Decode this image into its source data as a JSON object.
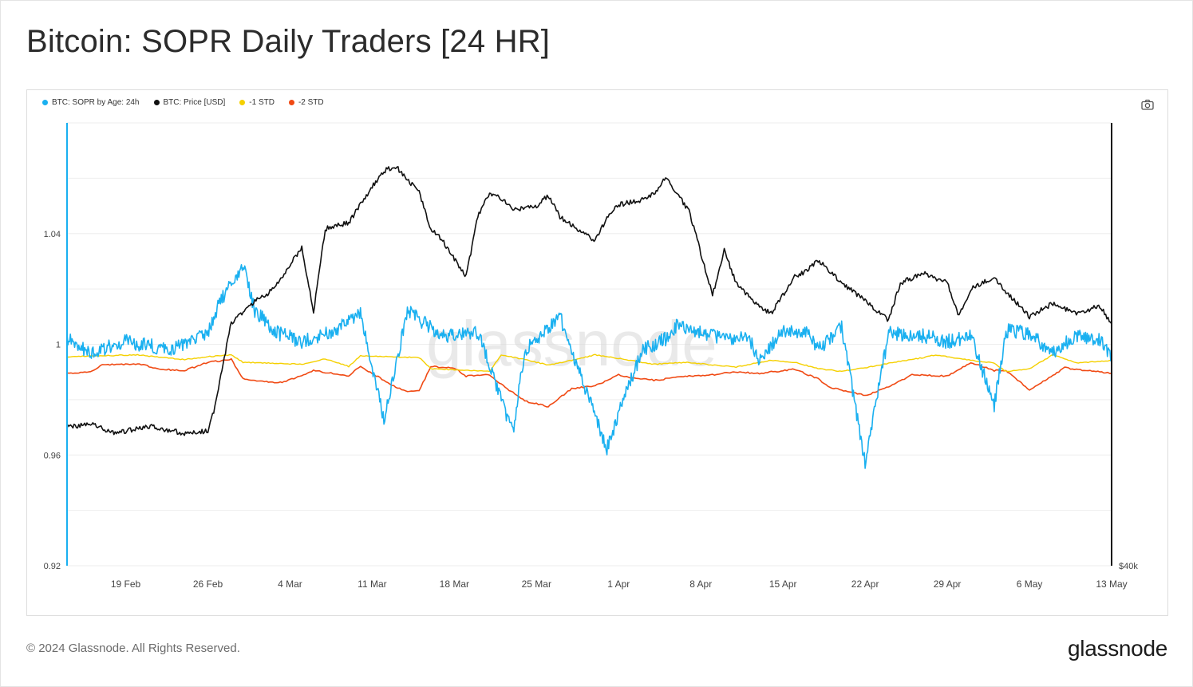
{
  "title": "Bitcoin: SOPR Daily Traders [24 HR]",
  "footer": {
    "copyright": "© 2024 Glassnode. All Rights Reserved.",
    "brand": "glassnode"
  },
  "watermark": "glassnode",
  "toolbar": {
    "screenshot_icon": "camera-icon"
  },
  "chart_data": {
    "type": "line",
    "legend": [
      {
        "name": "BTC: SOPR by Age: 24h",
        "color": "#1ab0f0"
      },
      {
        "name": "BTC: Price [USD]",
        "color": "#111111"
      },
      {
        "name": "-1 STD",
        "color": "#f5d000"
      },
      {
        "name": "-2 STD",
        "color": "#f04a14"
      }
    ],
    "x_ticks": [
      "19 Feb",
      "26 Feb",
      "4 Mar",
      "11 Mar",
      "18 Mar",
      "25 Mar",
      "1 Apr",
      "8 Apr",
      "15 Apr",
      "22 Apr",
      "29 Apr",
      "6 May",
      "13 May"
    ],
    "x_range": [
      "2024-02-14",
      "2024-05-14"
    ],
    "y_left": {
      "ticks": [
        "1.04",
        "1",
        "0.96",
        "0.92"
      ],
      "ylim": [
        0.92,
        1.08
      ]
    },
    "y_right": {
      "ticks": [
        "$40k"
      ]
    },
    "grid": true,
    "series": [
      {
        "name": "BTC: SOPR by Age: 24h",
        "color": "#1ab0f0",
        "x": [
          0,
          2,
          5,
          9,
          12,
          13,
          15,
          16,
          18,
          20,
          23,
          25,
          27,
          29,
          32,
          35,
          38,
          39,
          42,
          46,
          47,
          49,
          51,
          52,
          54,
          56,
          58,
          59,
          61,
          63,
          64,
          66,
          68,
          70,
          73,
          75,
          77,
          79,
          80,
          82,
          84,
          86,
          88,
          89
        ],
        "y": [
          1.002,
          0.997,
          1.001,
          0.998,
          1.004,
          1.015,
          1.028,
          1.012,
          1.004,
          1.001,
          1.005,
          1.012,
          0.972,
          1.012,
          1.003,
          1.004,
          0.968,
          0.998,
          1.01,
          0.962,
          0.975,
          0.998,
          1.002,
          1.007,
          1.004,
          1.002,
          1.003,
          0.994,
          1.005,
          1.004,
          0.998,
          1.006,
          0.957,
          1.004,
          1.003,
          1.001,
          1.003,
          0.978,
          1.005,
          1.004,
          0.997,
          1.003,
          1.002,
          0.995
        ]
      },
      {
        "name": "BTC: Price [USD]",
        "color": "#111111",
        "x": [
          0,
          2,
          4,
          7,
          10,
          12,
          12.5,
          14,
          16,
          17,
          18,
          20,
          21,
          22,
          24,
          26,
          27,
          28,
          30,
          31,
          32,
          33,
          34,
          35,
          36,
          37,
          38,
          40,
          41,
          42,
          45,
          46,
          47,
          49,
          50,
          51,
          53,
          55,
          56,
          57,
          59,
          60,
          62,
          63,
          64,
          66,
          68,
          70,
          71,
          73,
          75,
          76,
          77,
          79,
          80,
          82,
          84,
          86,
          88,
          89
        ],
        "y": [
          51500,
          51800,
          51000,
          51600,
          51000,
          51200,
          52800,
          60200,
          62000,
          62500,
          63500,
          66500,
          61000,
          68000,
          68500,
          71500,
          72800,
          73200,
          71000,
          68000,
          67000,
          65500,
          64000,
          69000,
          71000,
          70500,
          69600,
          69800,
          70800,
          69000,
          67000,
          68900,
          70000,
          70400,
          70900,
          72200,
          69500,
          62500,
          66200,
          63500,
          61500,
          61000,
          64000,
          64500,
          65400,
          63500,
          62000,
          60400,
          63500,
          64300,
          63500,
          60700,
          63000,
          64000,
          62800,
          60700,
          61800,
          60900,
          61600,
          60100
        ]
      },
      {
        "name": "-1 STD",
        "color": "#f5d000",
        "x": [
          0,
          6,
          8,
          10,
          12,
          14,
          15,
          20,
          22,
          24,
          25,
          30,
          31,
          36,
          37,
          39,
          41,
          43,
          45,
          48,
          50,
          53,
          55,
          57,
          60,
          62,
          64,
          66,
          68,
          70,
          73,
          74,
          77,
          79,
          80,
          82,
          84,
          86,
          89
        ],
        "y": [
          0.9955,
          0.9962,
          0.9952,
          0.9945,
          0.9955,
          0.9962,
          0.9935,
          0.9928,
          0.9948,
          0.992,
          0.9958,
          0.9952,
          0.9912,
          0.9902,
          0.9962,
          0.9945,
          0.9925,
          0.9942,
          0.9962,
          0.9942,
          0.9928,
          0.9935,
          0.9925,
          0.9918,
          0.9942,
          0.9935,
          0.9912,
          0.9902,
          0.9915,
          0.9932,
          0.9952,
          0.9962,
          0.9942,
          0.9932,
          0.9902,
          0.9912,
          0.9962,
          0.9932,
          0.9942
        ]
      },
      {
        "name": "-2 STD",
        "color": "#f04a14",
        "x": [
          0,
          2,
          3,
          6,
          8,
          10,
          12,
          14,
          15,
          18,
          20,
          21,
          24,
          25,
          28,
          29,
          30,
          31,
          33,
          34,
          36,
          37,
          39,
          41,
          43,
          45,
          47,
          48,
          50,
          53,
          55,
          57,
          59,
          61,
          62,
          64,
          65,
          68,
          70,
          72,
          75,
          77,
          79,
          80,
          82,
          85,
          89
        ],
        "y": [
          0.9895,
          0.99,
          0.9925,
          0.993,
          0.991,
          0.9905,
          0.9935,
          0.9945,
          0.9875,
          0.986,
          0.9885,
          0.9905,
          0.9885,
          0.992,
          0.9845,
          0.983,
          0.9832,
          0.992,
          0.9915,
          0.9885,
          0.989,
          0.9855,
          0.9795,
          0.9775,
          0.984,
          0.985,
          0.989,
          0.988,
          0.987,
          0.9885,
          0.989,
          0.99,
          0.9895,
          0.9905,
          0.991,
          0.9875,
          0.9845,
          0.9815,
          0.9845,
          0.989,
          0.9885,
          0.9935,
          0.9905,
          0.9905,
          0.9835,
          0.9915,
          0.9895
        ]
      }
    ],
    "annotations": [
      "$40k"
    ]
  }
}
